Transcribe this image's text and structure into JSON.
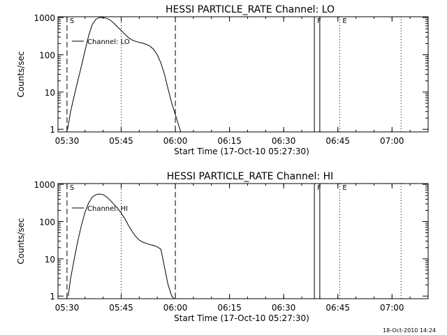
{
  "timestamp": "18-Oct-2010 14:24",
  "chart_data": [
    {
      "type": "line",
      "title": "HESSI PARTICLE_RATE Channel: LO",
      "xlabel": "Start Time (17-Oct-10 05:27:30)",
      "ylabel": "Counts/sec",
      "y_scale": "log",
      "ylim": [
        0.85,
        1050
      ],
      "xlim": [
        "05:27:30",
        "07:10:00"
      ],
      "x_ticks": [
        "05:30",
        "05:45",
        "06:00",
        "06:15",
        "06:30",
        "06:45",
        "07:00"
      ],
      "y_ticks": [
        "1",
        "10",
        "100",
        "1000"
      ],
      "legend_label": "Channel: LO",
      "grid": false,
      "markers": [
        {
          "label": "S",
          "time": "05:30:00",
          "style": "dashed"
        },
        {
          "label": "",
          "time": "05:45:00",
          "style": "dotted"
        },
        {
          "label": "",
          "time": "06:00:00",
          "style": "dashed"
        },
        {
          "label": "F",
          "time": "06:38:30",
          "style": "solid"
        },
        {
          "label": "",
          "time": "06:40:00",
          "style": "solid"
        },
        {
          "label": "E",
          "time": "06:45:30",
          "style": "dotted"
        },
        {
          "label": "",
          "time": "07:02:30",
          "style": "dotted"
        }
      ],
      "series": [
        {
          "x": [
            "05:30:10",
            "05:31:00",
            "05:32:00",
            "05:33:00",
            "05:34:00",
            "05:35:00",
            "05:36:00",
            "05:37:00",
            "05:38:00",
            "05:39:00",
            "05:40:00",
            "05:41:00",
            "05:42:00",
            "05:43:00",
            "05:44:00",
            "05:45:00",
            "05:46:00",
            "05:47:00",
            "05:48:00",
            "05:49:00",
            "05:50:00",
            "05:51:00",
            "05:52:00",
            "05:53:00",
            "05:54:00",
            "05:55:00",
            "05:56:00",
            "05:57:00",
            "05:58:00",
            "05:59:00",
            "06:00:00",
            "06:01:00",
            "06:01:30"
          ],
          "values": [
            1,
            3,
            8,
            20,
            50,
            130,
            330,
            650,
            900,
            1000,
            1000,
            950,
            850,
            700,
            560,
            450,
            360,
            290,
            250,
            230,
            215,
            205,
            190,
            170,
            140,
            100,
            60,
            30,
            12,
            5,
            2.5,
            1.2,
            0.85
          ]
        }
      ]
    },
    {
      "type": "line",
      "title": "HESSI PARTICLE_RATE Channel: HI",
      "xlabel": "Start Time (17-Oct-10 05:27:30)",
      "ylabel": "Counts/sec",
      "y_scale": "log",
      "ylim": [
        0.85,
        1050
      ],
      "xlim": [
        "05:27:30",
        "07:10:00"
      ],
      "x_ticks": [
        "05:30",
        "05:45",
        "06:00",
        "06:15",
        "06:30",
        "06:45",
        "07:00"
      ],
      "y_ticks": [
        "1",
        "10",
        "100",
        "1000"
      ],
      "legend_label": "Channel: HI",
      "grid": false,
      "markers": [
        {
          "label": "S",
          "time": "05:30:00",
          "style": "dashed"
        },
        {
          "label": "",
          "time": "05:45:00",
          "style": "dotted"
        },
        {
          "label": "",
          "time": "06:00:00",
          "style": "dashed"
        },
        {
          "label": "F",
          "time": "06:38:30",
          "style": "solid"
        },
        {
          "label": "",
          "time": "06:40:00",
          "style": "solid"
        },
        {
          "label": "E",
          "time": "06:45:30",
          "style": "dotted"
        },
        {
          "label": "",
          "time": "07:02:30",
          "style": "dotted"
        }
      ],
      "series": [
        {
          "x": [
            "05:30:20",
            "05:31:00",
            "05:32:00",
            "05:33:00",
            "05:34:00",
            "05:35:00",
            "05:36:00",
            "05:37:00",
            "05:38:00",
            "05:39:00",
            "05:40:00",
            "05:41:00",
            "05:42:00",
            "05:43:00",
            "05:44:00",
            "05:45:00",
            "05:46:00",
            "05:47:00",
            "05:48:00",
            "05:49:00",
            "05:50:00",
            "05:51:00",
            "05:52:00",
            "05:53:00",
            "05:54:00",
            "05:55:00",
            "05:56:00",
            "05:57:00",
            "05:58:00",
            "05:59:00",
            "05:59:40"
          ],
          "values": [
            1,
            3,
            10,
            30,
            80,
            180,
            320,
            450,
            530,
            550,
            530,
            460,
            370,
            290,
            230,
            170,
            120,
            80,
            55,
            40,
            32,
            28,
            26,
            24,
            23,
            21,
            18,
            6,
            2,
            1,
            0.85
          ]
        }
      ]
    }
  ]
}
